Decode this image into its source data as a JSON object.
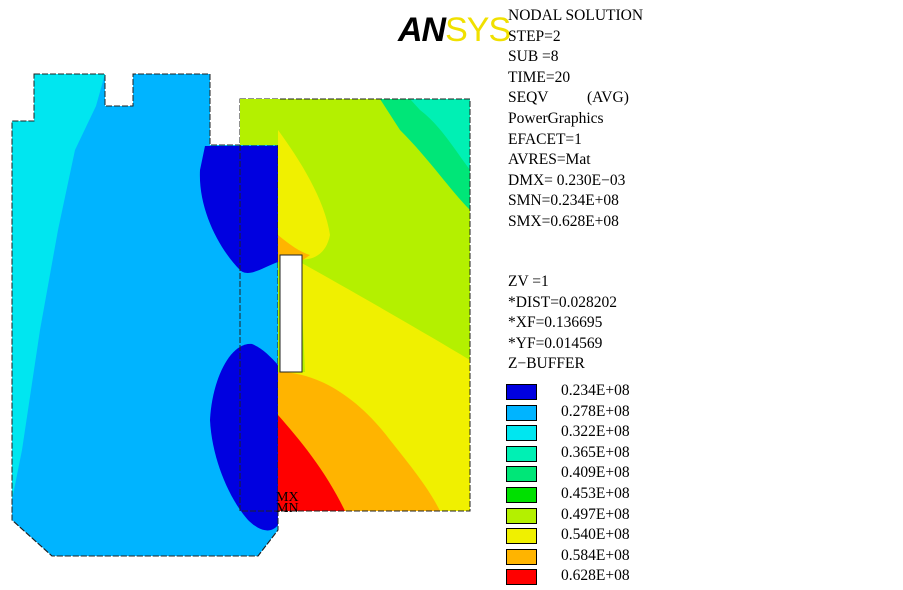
{
  "logo": {
    "part1": "AN",
    "part2": "SYS"
  },
  "solution_info": [
    "NODAL SOLUTION",
    "STEP=2",
    "SUB =8",
    "TIME=20",
    "SEQV          (AVG)",
    "PowerGraphics",
    "EFACET=1",
    "AVRES=Mat",
    "DMX= 0.230E−03",
    "SMN=0.234E+08",
    "SMX=0.628E+08"
  ],
  "view_info": [
    "ZV =1",
    "*DIST=0.028202",
    "*XF=0.136695",
    "*YF=0.014569",
    "Z−BUFFER"
  ],
  "legend": [
    {
      "label": "0.234E+08",
      "color": "#0000e0"
    },
    {
      "label": "0.278E+08",
      "color": "#00b4ff"
    },
    {
      "label": "0.322E+08",
      "color": "#00e6f0"
    },
    {
      "label": "0.365E+08",
      "color": "#00f0b4"
    },
    {
      "label": "0.409E+08",
      "color": "#00e678"
    },
    {
      "label": "0.453E+08",
      "color": "#00e000"
    },
    {
      "label": "0.497E+08",
      "color": "#b4f000"
    },
    {
      "label": "0.540E+08",
      "color": "#f0f000"
    },
    {
      "label": "0.584E+08",
      "color": "#ffb400"
    },
    {
      "label": "0.628E+08",
      "color": "#ff0000"
    }
  ],
  "markers": {
    "mx": "MX",
    "mn": "MN"
  }
}
